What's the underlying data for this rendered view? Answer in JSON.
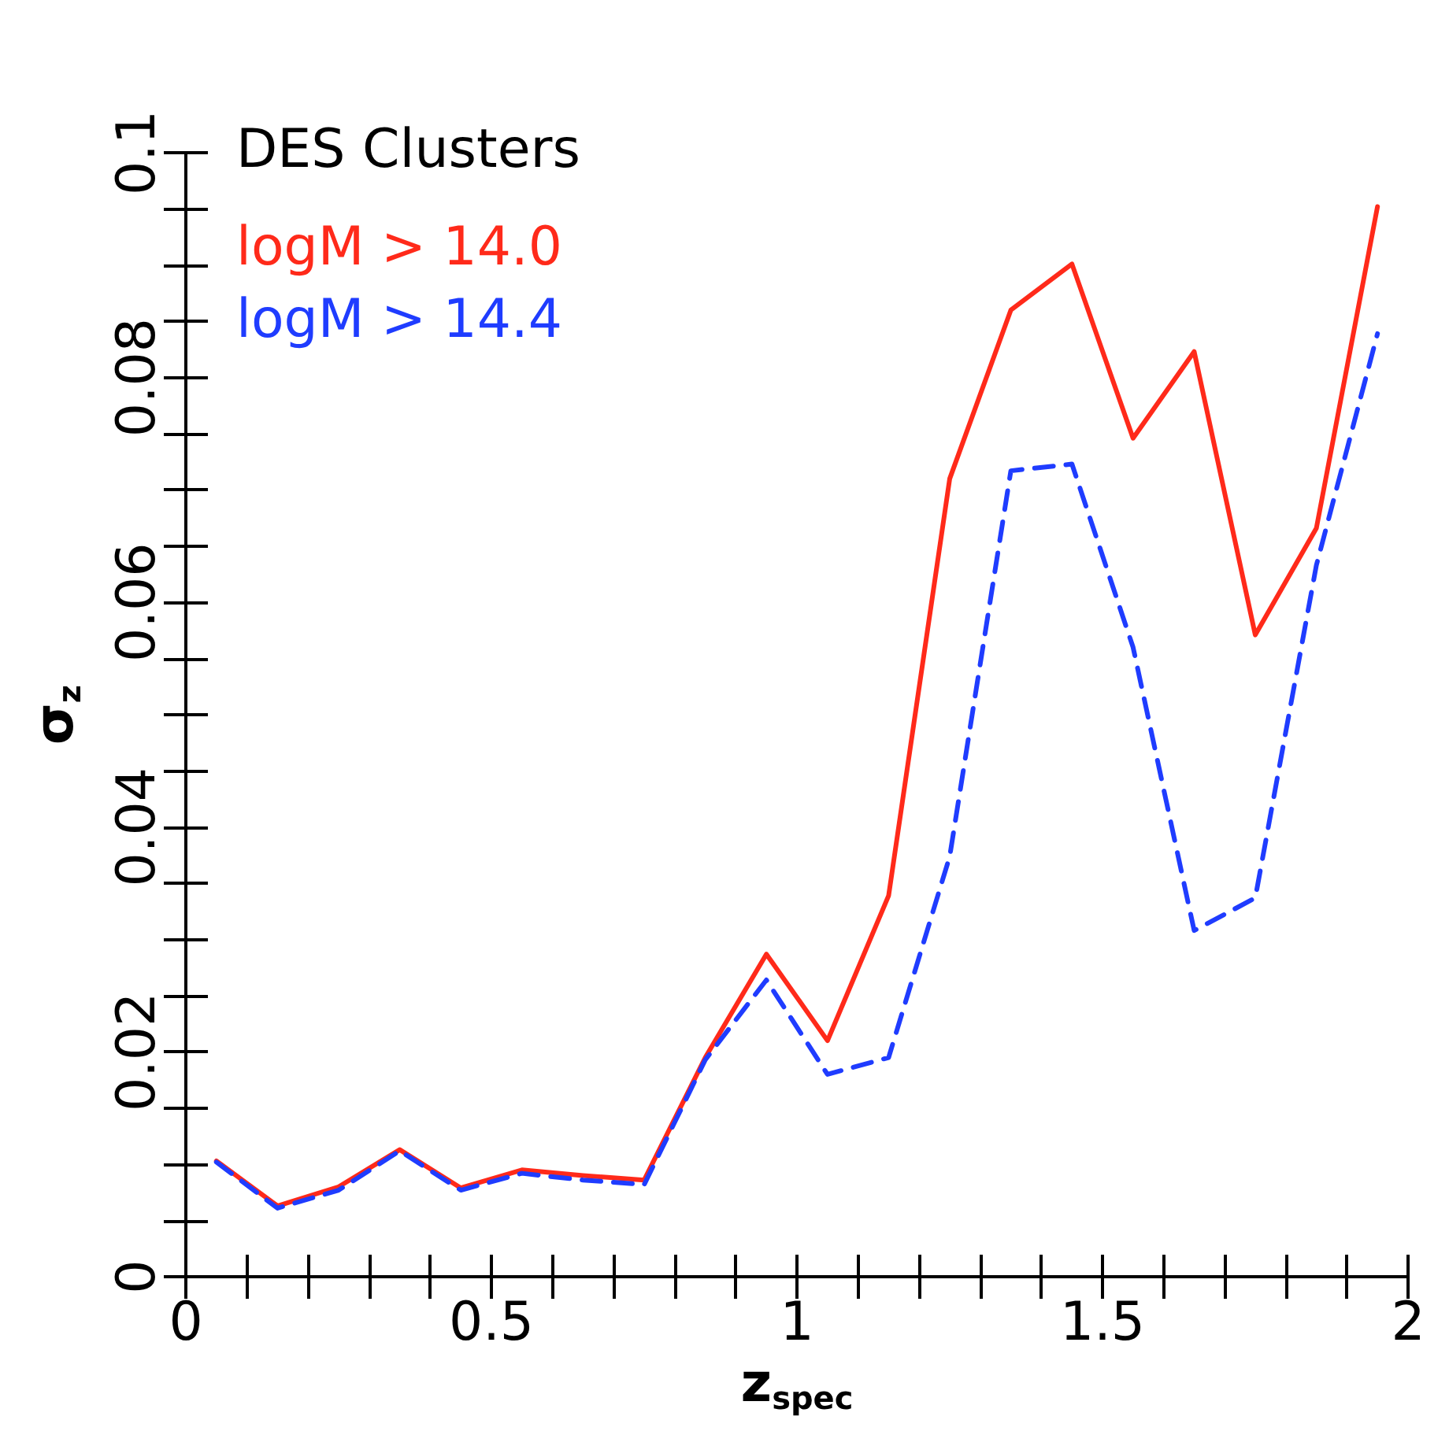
{
  "chart_data": {
    "type": "line",
    "xlabel": "z$_{spec}$",
    "ylabel": "σ$_{z}$",
    "legend_title": "DES Clusters",
    "legend": "top left",
    "grid": false,
    "marker": "none",
    "x": [
      0.05,
      0.15,
      0.25,
      0.35,
      0.45,
      0.55,
      0.65,
      0.75,
      0.85,
      0.95,
      1.05,
      1.15,
      1.25,
      1.35,
      1.45,
      1.55,
      1.65,
      1.75,
      1.85,
      1.95
    ],
    "xlim": [
      0,
      2
    ],
    "ylim": [
      0,
      0.1
    ],
    "xticks": [
      0,
      {
        "value": 0.1,
        "label": null
      },
      {
        "value": 0.2,
        "label": null
      },
      {
        "value": 0.3,
        "label": null
      },
      {
        "value": 0.4,
        "label": null
      },
      0.5,
      {
        "value": 0.6,
        "label": null
      },
      {
        "value": 0.7,
        "label": null
      },
      {
        "value": 0.8,
        "label": null
      },
      {
        "value": 0.9,
        "label": null
      },
      1,
      {
        "value": 1.1,
        "label": null
      },
      {
        "value": 1.2,
        "label": null
      },
      {
        "value": 1.3,
        "label": null
      },
      {
        "value": 1.4,
        "label": null
      },
      1.5,
      {
        "value": 1.6,
        "label": null
      },
      {
        "value": 1.7,
        "label": null
      },
      {
        "value": 1.8,
        "label": null
      },
      {
        "value": 1.9,
        "label": null
      },
      2
    ],
    "yticks": [
      0,
      {
        "value": 0.005,
        "label": null
      },
      {
        "value": 0.01,
        "label": null
      },
      {
        "value": 0.015,
        "label": null
      },
      0.02,
      {
        "value": 0.025,
        "label": null
      },
      {
        "value": 0.03,
        "label": null
      },
      {
        "value": 0.035,
        "label": null
      },
      0.04,
      {
        "value": 0.045,
        "label": null
      },
      {
        "value": 0.05,
        "label": null
      },
      {
        "value": 0.055,
        "label": null
      },
      0.06,
      {
        "value": 0.065,
        "label": null
      },
      {
        "value": 0.07,
        "label": null
      },
      {
        "value": 0.075,
        "label": null
      },
      0.08,
      {
        "value": 0.085,
        "label": null
      },
      {
        "value": 0.09,
        "label": null
      },
      {
        "value": 0.095,
        "label": null
      },
      0.1
    ],
    "series": [
      {
        "name": "logM > 14.0",
        "color": "#ff2a1a",
        "line_style": "solid",
        "values": [
          0.0103,
          0.0063,
          0.008,
          0.0113,
          0.0079,
          0.0095,
          0.009,
          0.0086,
          0.0195,
          0.0287,
          0.021,
          0.0339,
          0.071,
          0.086,
          0.0901,
          0.0746,
          0.0823,
          0.0571,
          0.0666,
          0.0952
        ]
      },
      {
        "name": "logM > 14.4",
        "color": "#1f3cff",
        "line_style": "dashed",
        "values": [
          0.0102,
          0.0061,
          0.0077,
          0.0112,
          0.0077,
          0.0092,
          0.0086,
          0.0082,
          0.0193,
          0.0264,
          0.018,
          0.0195,
          0.0374,
          0.0717,
          0.0723,
          0.056,
          0.0308,
          0.0337,
          0.0633,
          0.0839
        ]
      }
    ]
  }
}
